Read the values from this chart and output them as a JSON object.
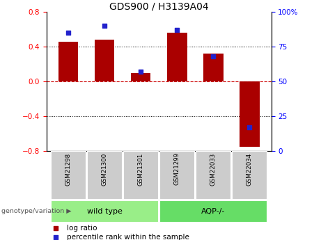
{
  "title": "GDS900 / H3139A04",
  "samples": [
    "GSM21298",
    "GSM21300",
    "GSM21301",
    "GSM21299",
    "GSM22033",
    "GSM22034"
  ],
  "log_ratio": [
    0.46,
    0.48,
    0.1,
    0.56,
    0.32,
    -0.75
  ],
  "percentile_rank": [
    85,
    90,
    57,
    87,
    68,
    17
  ],
  "ylim_left": [
    -0.8,
    0.8
  ],
  "ylim_right": [
    0,
    100
  ],
  "yticks_left": [
    -0.8,
    -0.4,
    0,
    0.4,
    0.8
  ],
  "yticks_right": [
    0,
    25,
    50,
    75,
    100
  ],
  "bar_color": "#aa0000",
  "dot_color": "#2222cc",
  "zero_line_color": "#cc0000",
  "grid_color": "#000000",
  "groups": [
    {
      "label": "wild type",
      "indices": [
        0,
        1,
        2
      ],
      "color": "#99ee88"
    },
    {
      "label": "AQP-/-",
      "indices": [
        3,
        4,
        5
      ],
      "color": "#66dd66"
    }
  ],
  "group_label_prefix": "genotype/variation",
  "legend_items": [
    {
      "label": "log ratio",
      "color": "#aa0000"
    },
    {
      "label": "percentile rank within the sample",
      "color": "#2222cc"
    }
  ],
  "bg_color": "#ffffff",
  "sample_box_color": "#cccccc",
  "title_fontsize": 10,
  "axis_fontsize": 7.5,
  "tick_fontsize": 7,
  "legend_fontsize": 7.5
}
